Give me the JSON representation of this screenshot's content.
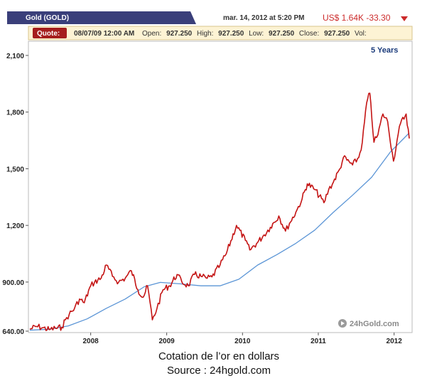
{
  "header": {
    "tab_title": "Gold (GOLD)",
    "timestamp": "mar. 14, 2012 at 5:20 PM",
    "price": "US$ 1.64K -33.30",
    "price_icon": "triangle-down-icon"
  },
  "quote_bar": {
    "label": "Quote:",
    "datetime": "08/07/09 12:00 AM",
    "open_label": "Open:",
    "open_value": "927.250",
    "high_label": "High:",
    "high_value": "927.250",
    "low_label": "Low:",
    "low_value": "927.250",
    "close_label": "Close:",
    "close_value": "927.250",
    "vol_label": "Vol:"
  },
  "range_label": "5 Years",
  "watermark": {
    "icon": "play-circle-icon",
    "text": "24hGold.com"
  },
  "colors": {
    "price_line": "#c41414",
    "moving_average": "#5b95d6",
    "header_tab": "#3a3f7a",
    "quote_label_bg": "#a51d1d",
    "quote_bar_bg": "#fdf3d4"
  },
  "caption": {
    "line1": "Cotation de l’or en dollars",
    "line2": "Source : 24hgold.com"
  },
  "chart_data": {
    "type": "line",
    "title": "",
    "xlabel": "",
    "ylabel": "",
    "x_ticks": [
      "2008",
      "2009",
      "2010",
      "2011",
      "2012"
    ],
    "y_ticks": [
      {
        "value": 640,
        "label": "640.00"
      },
      {
        "value": 900,
        "label": "900.00"
      },
      {
        "value": 1200,
        "label": "1,200"
      },
      {
        "value": 1500,
        "label": "1,500"
      },
      {
        "value": 1800,
        "label": "1,800"
      },
      {
        "value": 2100,
        "label": "2,100"
      }
    ],
    "xlim": [
      "2007-03-14",
      "2012-03-14"
    ],
    "ylim": [
      640,
      2100
    ],
    "grid": false,
    "legend": "none",
    "series": [
      {
        "style": "price",
        "x": [
          "2007-03-14",
          "2007-04-15",
          "2007-05-15",
          "2007-06-15",
          "2007-07-15",
          "2007-08-15",
          "2007-09-01",
          "2007-09-20",
          "2007-10-15",
          "2007-11-08",
          "2007-12-01",
          "2008-01-01",
          "2008-01-20",
          "2008-02-20",
          "2008-03-17",
          "2008-04-15",
          "2008-05-15",
          "2008-06-15",
          "2008-07-15",
          "2008-08-15",
          "2008-09-10",
          "2008-10-01",
          "2008-10-24",
          "2008-11-15",
          "2008-12-15",
          "2009-01-15",
          "2009-02-20",
          "2009-03-15",
          "2009-04-15",
          "2009-05-15",
          "2009-06-15",
          "2009-07-15",
          "2009-08-07",
          "2009-09-15",
          "2009-10-15",
          "2009-12-03",
          "2010-01-15",
          "2010-02-05",
          "2010-03-15",
          "2010-04-15",
          "2010-05-15",
          "2010-06-25",
          "2010-07-27",
          "2010-08-15",
          "2010-09-15",
          "2010-10-15",
          "2010-11-09",
          "2010-12-15",
          "2011-01-28",
          "2011-02-20",
          "2011-03-15",
          "2011-04-15",
          "2011-05-02",
          "2011-06-15",
          "2011-07-15",
          "2011-08-01",
          "2011-08-22",
          "2011-09-06",
          "2011-09-26",
          "2011-10-15",
          "2011-11-08",
          "2011-12-01",
          "2011-12-29",
          "2012-01-15",
          "2012-02-01",
          "2012-02-28",
          "2012-03-14"
        ],
        "y": [
          650,
          665,
          658,
          648,
          655,
          660,
          700,
          730,
          760,
          810,
          790,
          880,
          900,
          920,
          990,
          930,
          900,
          920,
          960,
          860,
          820,
          880,
          700,
          760,
          860,
          880,
          940,
          900,
          880,
          940,
          930,
          920,
          927,
          990,
          1050,
          1200,
          1120,
          1070,
          1110,
          1150,
          1190,
          1250,
          1170,
          1210,
          1270,
          1340,
          1420,
          1390,
          1320,
          1390,
          1430,
          1500,
          1560,
          1520,
          1560,
          1640,
          1850,
          1900,
          1640,
          1680,
          1790,
          1750,
          1540,
          1650,
          1740,
          1790,
          1660
        ]
      },
      {
        "style": "moving-average",
        "x": [
          "2007-03-14",
          "2007-06-15",
          "2007-09-15",
          "2007-12-15",
          "2008-03-15",
          "2008-06-15",
          "2008-09-15",
          "2008-12-01",
          "2009-03-15",
          "2009-06-15",
          "2009-09-15",
          "2009-12-15",
          "2010-03-15",
          "2010-06-15",
          "2010-09-15",
          "2010-12-15",
          "2011-03-15",
          "2011-06-15",
          "2011-09-15",
          "2011-12-15",
          "2012-03-14"
        ],
        "y": [
          645,
          650,
          668,
          705,
          760,
          810,
          875,
          898,
          890,
          880,
          880,
          915,
          990,
          1045,
          1105,
          1175,
          1270,
          1360,
          1455,
          1590,
          1690
        ]
      }
    ]
  }
}
